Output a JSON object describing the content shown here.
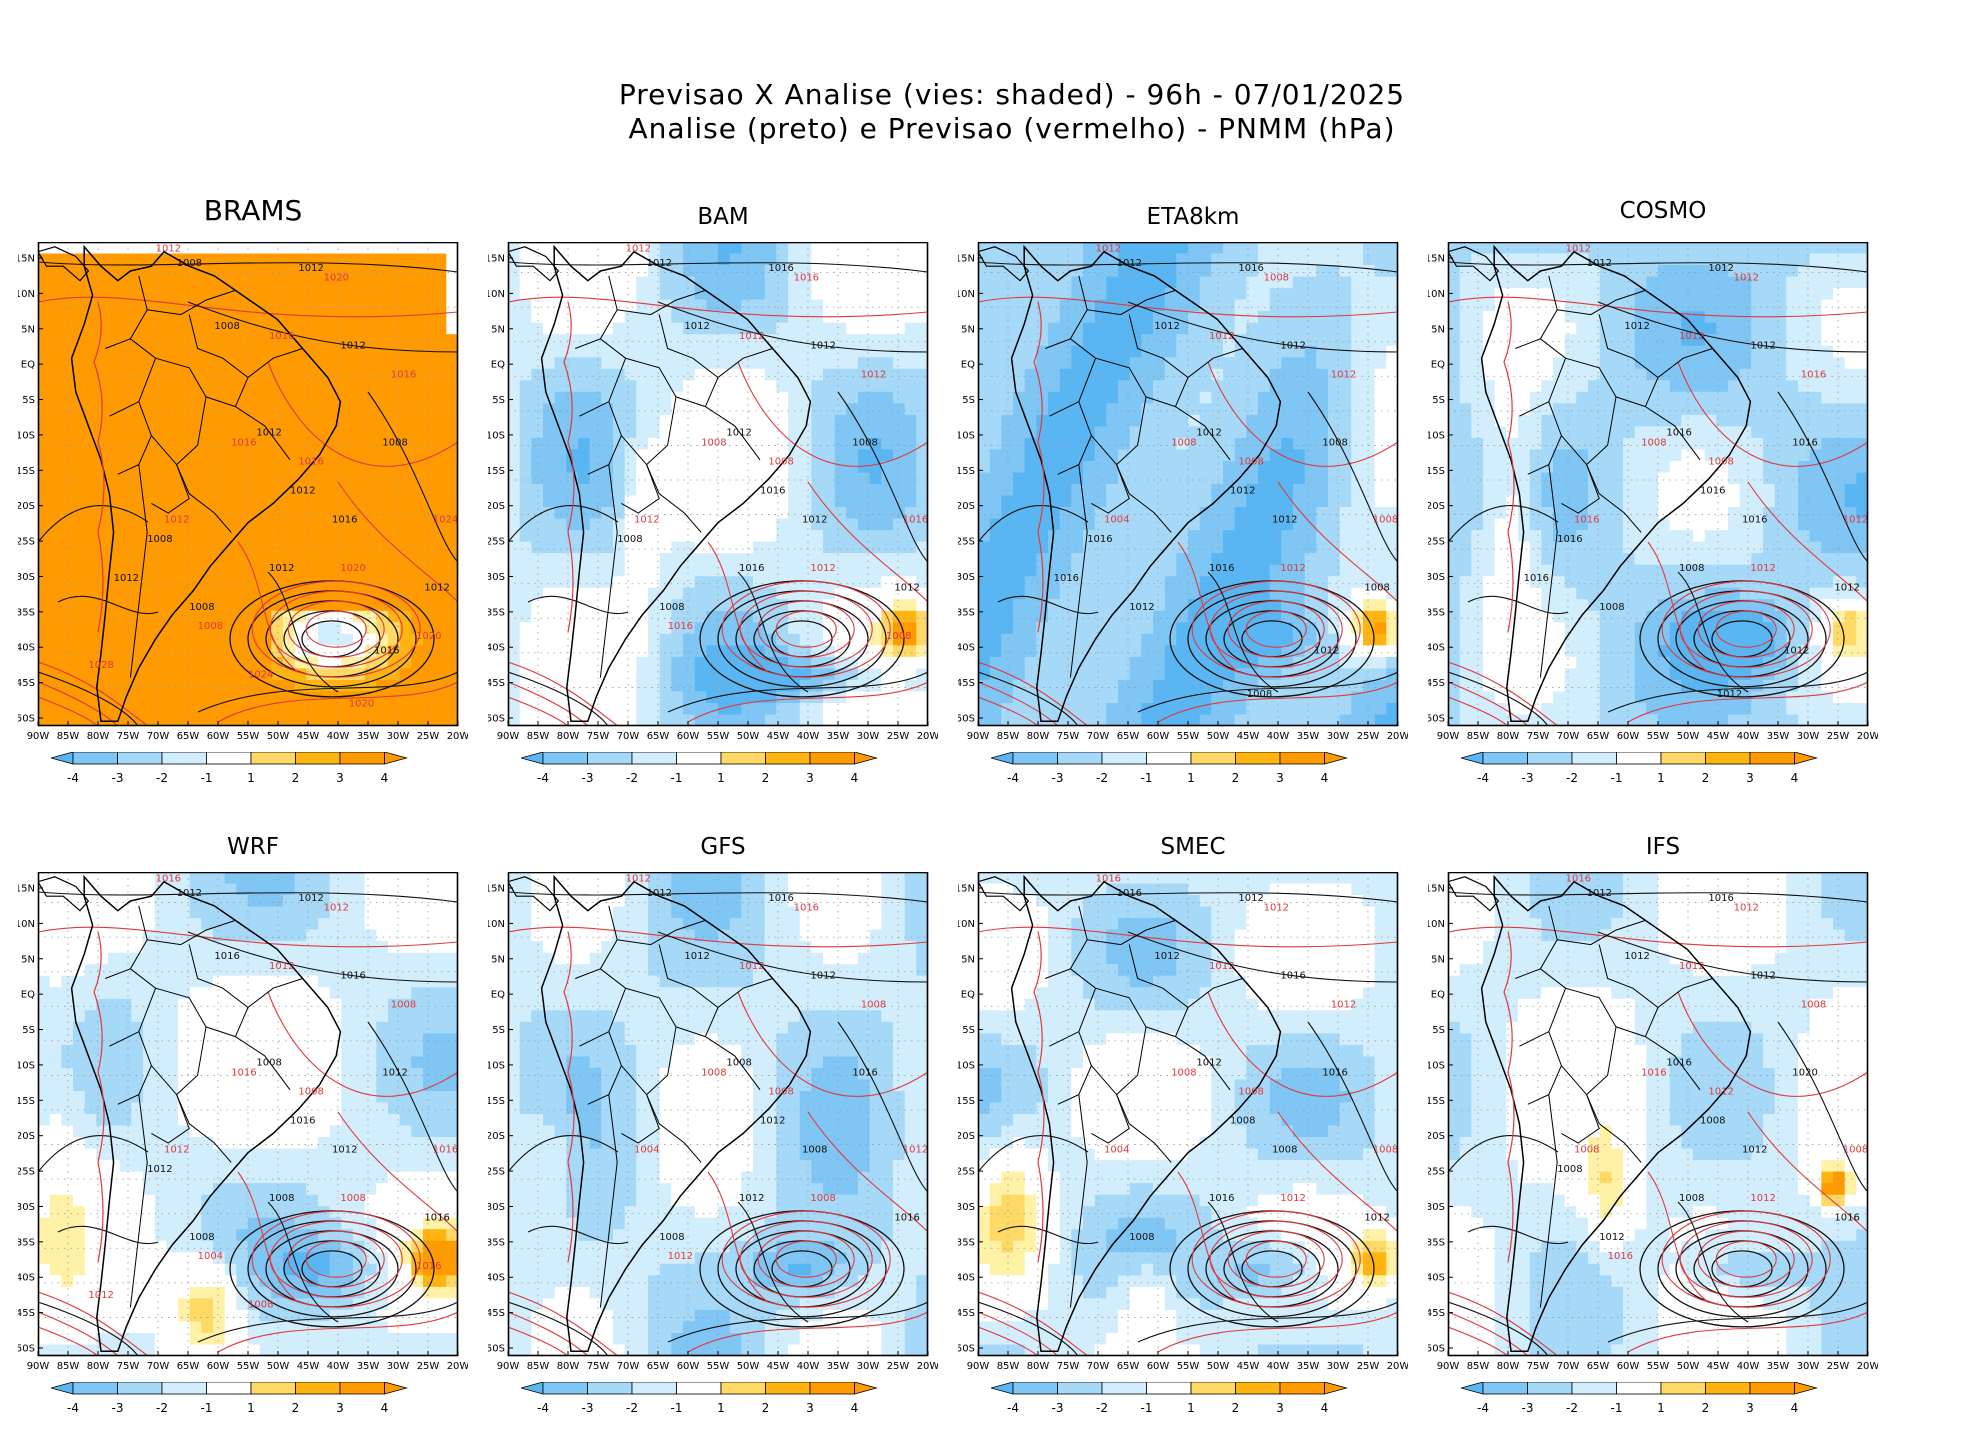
{
  "header": {
    "title_line1": "Previsao X Analise (vies: shaded) - 96h - 07/01/2025",
    "title_line2": "Analise (preto) e Previsao (vermelho) - PNMM (hPa)"
  },
  "axes": {
    "lon_labels": [
      "90W",
      "85W",
      "80W",
      "75W",
      "70W",
      "65W",
      "60W",
      "55W",
      "50W",
      "45W",
      "40W",
      "35W",
      "30W",
      "25W",
      "20W"
    ],
    "lat_labels": [
      "15N",
      "10N",
      "5N",
      "EQ",
      "5S",
      "10S",
      "15S",
      "20S",
      "25S",
      "30S",
      "35S",
      "40S",
      "45S",
      "50S"
    ]
  },
  "colorbar": {
    "labels": [
      "-4",
      "-3",
      "-2",
      "-1",
      "1",
      "2",
      "3",
      "4"
    ],
    "colors": [
      "#5ab6f2",
      "#7fc6f5",
      "#a6d9f8",
      "#d2eefc",
      "#ffffff",
      "#fff2a6",
      "#ffd966",
      "#ffb412",
      "#ff9a00"
    ]
  },
  "colors": {
    "analysis_contour": "#111111",
    "forecast_contour": "#e0393c",
    "land_fill": "#ffffff",
    "grid": "#9a9a9a"
  },
  "panels": [
    {
      "model": "BRAMS",
      "labels_black": [
        "1008",
        "1012",
        "1008",
        "1012",
        "1012",
        "1012",
        "1008",
        "1016",
        "1012",
        "1012",
        "1008",
        "1008",
        "1016",
        "1012"
      ],
      "labels_red": [
        "1012",
        "1020",
        "1016",
        "1016",
        "1016",
        "1016",
        "1012",
        "1024",
        "1020",
        "1008",
        "1020",
        "1028",
        "1024",
        "1020"
      ]
    },
    {
      "model": "BAM",
      "labels_black": [
        "1012",
        "1016",
        "1012",
        "1012",
        "1012",
        "1016",
        "1008",
        "1012",
        "1016",
        "1012",
        "1008",
        "1008"
      ],
      "labels_red": [
        "1012",
        "1016",
        "1012",
        "1012",
        "1008",
        "1008",
        "1012",
        "1016",
        "1012",
        "1016",
        "1008"
      ]
    },
    {
      "model": "ETA8km",
      "labels_black": [
        "1012",
        "1016",
        "1012",
        "1012",
        "1012",
        "1012",
        "1008",
        "1012",
        "1016",
        "1008",
        "1012",
        "1016",
        "1012",
        "1016",
        "1008"
      ],
      "labels_red": [
        "1012",
        "1008",
        "1012",
        "1012",
        "1008",
        "1008",
        "1004",
        "1008",
        "1012"
      ]
    },
    {
      "model": "COSMO",
      "labels_black": [
        "1012",
        "1012",
        "1012",
        "1012",
        "1016",
        "1016",
        "1016",
        "1016",
        "1008",
        "1012",
        "1008",
        "1016",
        "1012",
        "1016",
        "1012"
      ],
      "labels_red": [
        "1012",
        "1012",
        "1012",
        "1016",
        "1008",
        "1008",
        "1016",
        "1012",
        "1012"
      ]
    },
    {
      "model": "WRF",
      "labels_black": [
        "1012",
        "1012",
        "1016",
        "1016",
        "1008",
        "1016",
        "1012",
        "1012",
        "1008",
        "1016",
        "1008",
        "1012"
      ],
      "labels_red": [
        "1016",
        "1012",
        "1012",
        "1008",
        "1016",
        "1008",
        "1012",
        "1016",
        "1008",
        "1004",
        "1016",
        "1012",
        "1008"
      ]
    },
    {
      "model": "GFS",
      "labels_black": [
        "1012",
        "1016",
        "1012",
        "1012",
        "1008",
        "1012",
        "1016",
        "1008",
        "1012",
        "1016",
        "1008"
      ],
      "labels_red": [
        "1012",
        "1016",
        "1012",
        "1008",
        "1008",
        "1008",
        "1004",
        "1012",
        "1008",
        "1012"
      ]
    },
    {
      "model": "SMEC",
      "labels_black": [
        "1016",
        "1012",
        "1012",
        "1016",
        "1012",
        "1008",
        "1016",
        "1008",
        "1016",
        "1012",
        "1008"
      ],
      "labels_red": [
        "1016",
        "1012",
        "1012",
        "1012",
        "1008",
        "1008",
        "1004",
        "1008",
        "1012"
      ]
    },
    {
      "model": "IFS",
      "labels_black": [
        "1012",
        "1016",
        "1012",
        "1012",
        "1016",
        "1008",
        "1020",
        "1012",
        "1008",
        "1016",
        "1012",
        "1008"
      ],
      "labels_red": [
        "1016",
        "1012",
        "1012",
        "1008",
        "1016",
        "1012",
        "1008",
        "1008",
        "1012",
        "1016"
      ]
    }
  ]
}
